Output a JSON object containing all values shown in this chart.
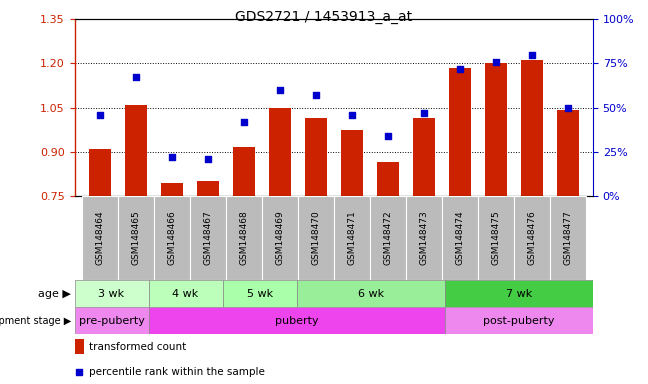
{
  "title": "GDS2721 / 1453913_a_at",
  "samples": [
    "GSM148464",
    "GSM148465",
    "GSM148466",
    "GSM148467",
    "GSM148468",
    "GSM148469",
    "GSM148470",
    "GSM148471",
    "GSM148472",
    "GSM148473",
    "GSM148474",
    "GSM148475",
    "GSM148476",
    "GSM148477"
  ],
  "red_values": [
    0.91,
    1.06,
    0.795,
    0.8,
    0.915,
    1.05,
    1.015,
    0.975,
    0.865,
    1.015,
    1.185,
    1.2,
    1.21,
    1.04
  ],
  "blue_values": [
    46,
    67,
    22,
    21,
    42,
    60,
    57,
    46,
    34,
    47,
    72,
    76,
    80,
    50
  ],
  "ylim_left": [
    0.75,
    1.35
  ],
  "ylim_right": [
    0,
    100
  ],
  "yticks_left": [
    0.75,
    0.9,
    1.05,
    1.2,
    1.35
  ],
  "yticks_right": [
    0,
    25,
    50,
    75,
    100
  ],
  "ytick_labels_right": [
    "0%",
    "25%",
    "50%",
    "75%",
    "100%"
  ],
  "red_color": "#cc2200",
  "blue_color": "#0000cc",
  "bar_width": 0.6,
  "age_ranges": [
    [
      0,
      2,
      "3 wk"
    ],
    [
      2,
      4,
      "4 wk"
    ],
    [
      4,
      6,
      "5 wk"
    ],
    [
      6,
      10,
      "6 wk"
    ],
    [
      10,
      14,
      "7 wk"
    ]
  ],
  "age_colors": [
    "#ccffcc",
    "#bbffbb",
    "#aaffaa",
    "#99ee99",
    "#44cc44"
  ],
  "dev_ranges": [
    [
      0,
      2,
      "pre-puberty"
    ],
    [
      2,
      10,
      "puberty"
    ],
    [
      10,
      14,
      "post-puberty"
    ]
  ],
  "dev_colors": [
    "#ee88ee",
    "#ee44ee",
    "#ee88ee"
  ],
  "tick_bg_color": "#bbbbbb",
  "grid_color": "#000000"
}
